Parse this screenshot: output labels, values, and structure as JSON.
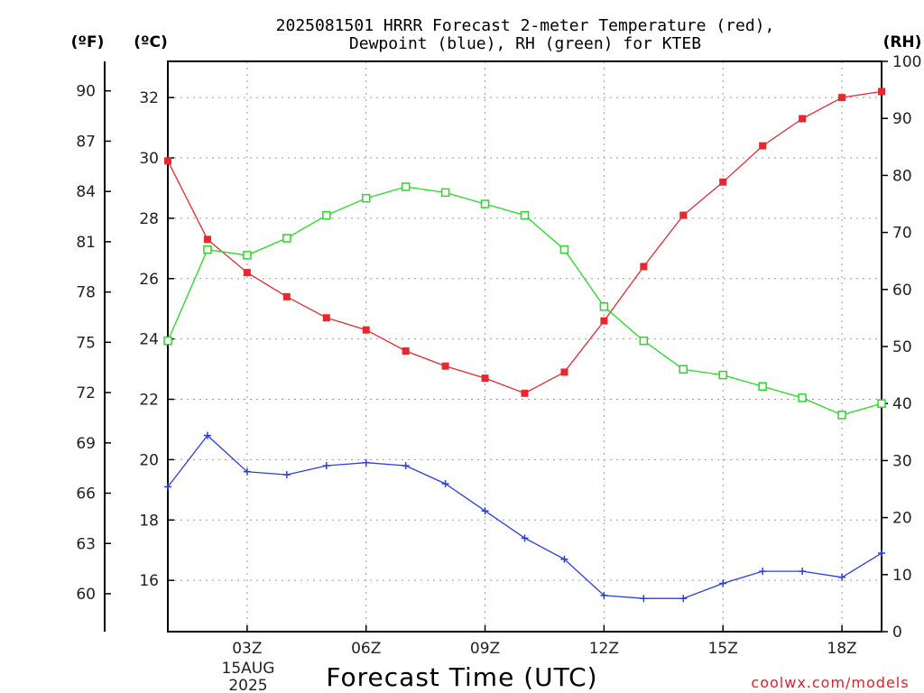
{
  "header": {
    "title_line1": "2025081501 HRRR Forecast 2-meter Temperature (red),",
    "title_line2": "Dewpoint (blue), RH (green) for KTEB"
  },
  "axes": {
    "unit_f": "(ºF)",
    "unit_c": "(ºC)",
    "unit_rh": "(RH)",
    "xlabel": "Forecast Time (UTC)",
    "date_day": "15AUG",
    "date_year": "2025"
  },
  "credit": "coolwx.com/models",
  "colors": {
    "temperature": "#e8282e",
    "dewpoint": "#2a3ee6",
    "rh": "#22dd22",
    "grid": "#9a9a9a"
  },
  "chart_data": {
    "type": "line",
    "x_unit": "UTC hour",
    "x": [
      1,
      2,
      3,
      4,
      5,
      6,
      7,
      8,
      9,
      10,
      11,
      12,
      13,
      14,
      15,
      16,
      17,
      18,
      19
    ],
    "x_ticks": [
      {
        "x": 3,
        "label": "03Z"
      },
      {
        "x": 6,
        "label": "06Z"
      },
      {
        "x": 9,
        "label": "09Z"
      },
      {
        "x": 12,
        "label": "12Z"
      },
      {
        "x": 15,
        "label": "15Z"
      },
      {
        "x": 18,
        "label": "18Z"
      }
    ],
    "xlim": [
      1,
      19
    ],
    "ylim_c": [
      14.3,
      33.2
    ],
    "ylim_f": [
      57.74,
      91.76
    ],
    "ylim_rh": [
      0,
      100
    ],
    "yticks_c": [
      "16",
      "18",
      "20",
      "22",
      "24",
      "26",
      "28",
      "30",
      "32"
    ],
    "yticks_f": [
      "60",
      "63",
      "66",
      "69",
      "72",
      "75",
      "78",
      "81",
      "84",
      "87",
      "90"
    ],
    "yticks_rh": [
      "0",
      "10",
      "20",
      "30",
      "40",
      "50",
      "60",
      "70",
      "80",
      "90",
      "100"
    ],
    "grid": true,
    "series": [
      {
        "key": "temperature",
        "axis": "c",
        "marker": "filled-square",
        "values": [
          29.9,
          27.3,
          26.2,
          25.4,
          24.7,
          24.3,
          23.6,
          23.1,
          22.7,
          22.2,
          22.9,
          24.6,
          26.4,
          28.1,
          29.2,
          30.4,
          31.3,
          32.0,
          32.2
        ]
      },
      {
        "key": "dewpoint",
        "axis": "c",
        "marker": "plus",
        "values": [
          19.1,
          20.8,
          19.6,
          19.5,
          19.8,
          19.9,
          19.8,
          19.2,
          18.3,
          17.4,
          16.7,
          15.5,
          15.4,
          15.4,
          15.9,
          16.3,
          16.3,
          16.1,
          16.9
        ]
      },
      {
        "key": "rh",
        "axis": "rh",
        "marker": "open-square",
        "values": [
          51,
          67,
          66,
          69,
          73,
          76,
          78,
          77,
          75,
          73,
          67,
          57,
          51,
          46,
          45,
          43,
          41,
          38,
          40
        ]
      }
    ]
  }
}
